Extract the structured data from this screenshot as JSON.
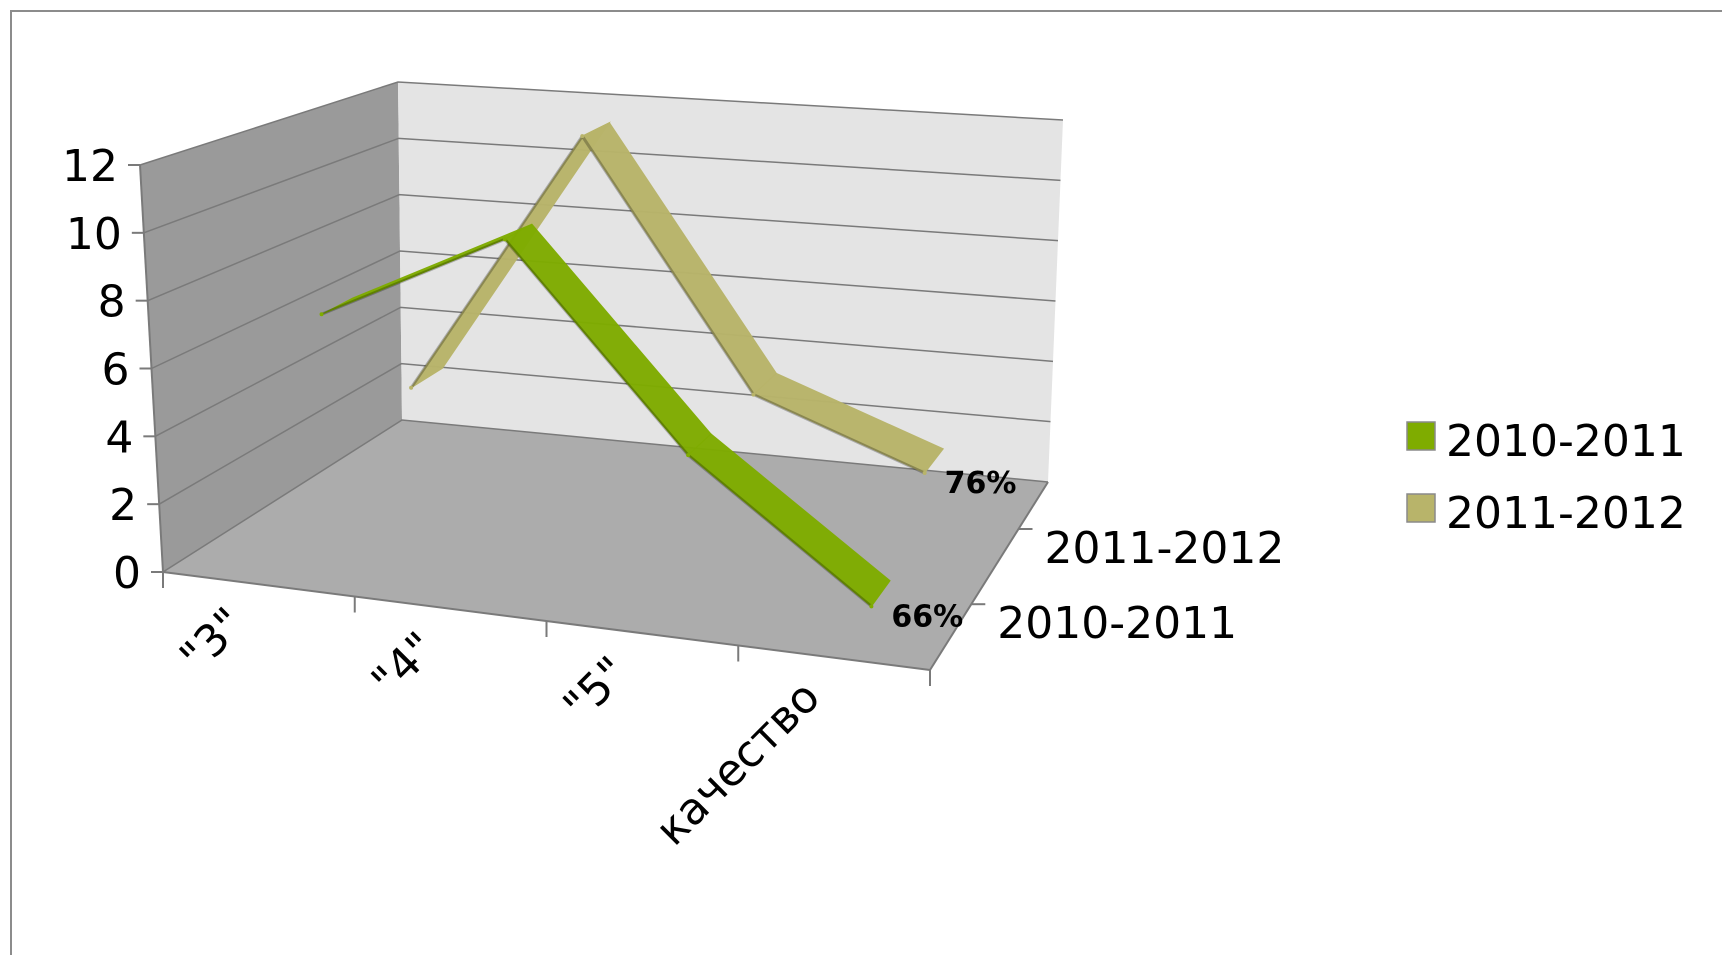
{
  "chart_data": {
    "type": "line",
    "title": "",
    "categories": [
      "\"3\"",
      "\"4\"",
      "\"5\"",
      "качество"
    ],
    "series": [
      {
        "name": "2010-2011",
        "values": [
          7,
          10,
          4,
          0
        ],
        "data_label": "66%",
        "color": "#7fac00"
      },
      {
        "name": "2011-2012",
        "values": [
          3,
          12,
          4,
          2
        ],
        "data_label": "76%",
        "color": "#b8b46a"
      }
    ],
    "ylim": [
      0,
      12
    ],
    "yticks": [
      "0",
      "2",
      "4",
      "6",
      "8",
      "10",
      "12"
    ],
    "depth_axis_labels": [
      "2010-2011",
      "2011-2012"
    ],
    "style": "3d-line",
    "grid": true,
    "legend_position": "right"
  }
}
